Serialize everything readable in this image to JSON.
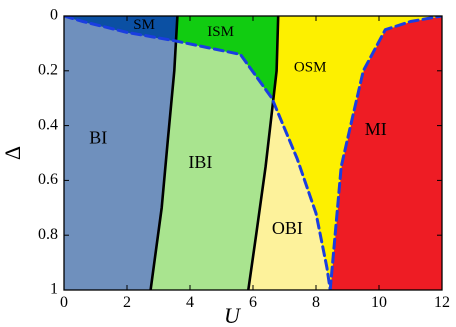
{
  "chart_data": {
    "type": "area",
    "title": "",
    "xlabel": "U",
    "ylabel": "Δ",
    "xlim": [
      0,
      12
    ],
    "ylim": [
      0,
      1
    ],
    "y_inverted": true,
    "grid": false,
    "legend": "none",
    "xticks": [
      "0",
      "2",
      "4",
      "6",
      "8",
      "10",
      "12"
    ],
    "yticks": [
      "0",
      "0.2",
      "0.4",
      "0.6",
      "0.8",
      "1"
    ],
    "xtick_values": [
      0,
      2,
      4,
      6,
      8,
      10,
      12
    ],
    "ytick_values": [
      0,
      0.2,
      0.4,
      0.6,
      0.8,
      1
    ],
    "colors": {
      "BI": "#6f90bd",
      "SM": "#0b50a3",
      "IBI": "#a9e48f",
      "ISM": "#11cc11",
      "OBI": "#fdf29b",
      "OSM": "#fdf000",
      "MI": "#ee1c24",
      "solid_boundary": "#000000",
      "dashed_boundary": "#1a3ee0"
    },
    "boundaries": {
      "band_to_interband_solid": [
        {
          "x": 2.75,
          "y": 1.0
        },
        {
          "x": 3.1,
          "y": 0.7
        },
        {
          "x": 3.3,
          "y": 0.45
        },
        {
          "x": 3.5,
          "y": 0.2
        },
        {
          "x": 3.6,
          "y": 0.0
        }
      ],
      "interband_to_orbital_solid": [
        {
          "x": 5.85,
          "y": 1.0
        },
        {
          "x": 6.1,
          "y": 0.8
        },
        {
          "x": 6.4,
          "y": 0.55
        },
        {
          "x": 6.6,
          "y": 0.35
        },
        {
          "x": 6.75,
          "y": 0.2
        },
        {
          "x": 6.8,
          "y": 0.0
        }
      ],
      "metal_to_insulator_dashed": [
        {
          "x": 0.0,
          "y": 0.0
        },
        {
          "x": 0.6,
          "y": 0.02
        },
        {
          "x": 2.0,
          "y": 0.06
        },
        {
          "x": 3.5,
          "y": 0.09
        },
        {
          "x": 5.6,
          "y": 0.14
        },
        {
          "x": 6.6,
          "y": 0.3
        },
        {
          "x": 7.4,
          "y": 0.52
        },
        {
          "x": 8.0,
          "y": 0.72
        },
        {
          "x": 8.35,
          "y": 0.92
        },
        {
          "x": 8.45,
          "y": 1.0
        }
      ],
      "orbital_to_mott_dashed": [
        {
          "x": 8.45,
          "y": 1.0
        },
        {
          "x": 8.8,
          "y": 0.55
        },
        {
          "x": 9.1,
          "y": 0.4
        },
        {
          "x": 9.5,
          "y": 0.2
        },
        {
          "x": 10.2,
          "y": 0.05
        },
        {
          "x": 11.0,
          "y": 0.02
        },
        {
          "x": 12.0,
          "y": 0.0
        }
      ]
    },
    "region_labels": [
      {
        "key": "BI",
        "text": "BI",
        "x": 0.8,
        "y": 0.45,
        "size": 18
      },
      {
        "key": "SM",
        "text": "SM",
        "x": 2.2,
        "y": 0.035,
        "size": 15
      },
      {
        "key": "ISM",
        "text": "ISM",
        "x": 4.55,
        "y": 0.06,
        "size": 15
      },
      {
        "key": "IBI",
        "text": "IBI",
        "x": 3.95,
        "y": 0.54,
        "size": 18
      },
      {
        "key": "OSM",
        "text": "OSM",
        "x": 7.3,
        "y": 0.19,
        "size": 15
      },
      {
        "key": "OBI",
        "text": "OBI",
        "x": 6.6,
        "y": 0.78,
        "size": 18
      },
      {
        "key": "MI",
        "text": "MI",
        "x": 9.55,
        "y": 0.42,
        "size": 18
      }
    ]
  }
}
